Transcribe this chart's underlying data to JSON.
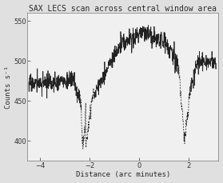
{
  "title": "SAX LECS scan across central window area",
  "xlabel": "Distance (arc minutes)",
  "ylabel": "Counts s⁻¹",
  "xlim": [
    -4.5,
    3.2
  ],
  "ylim": [
    375,
    560
  ],
  "xticks": [
    -4,
    -2,
    0,
    2
  ],
  "yticks": [
    400,
    450,
    500,
    550
  ],
  "plot_bg": "#f0f0f0",
  "fig_bg": "#e0e0e0",
  "line_color": "#222222",
  "title_fontsize": 7.0,
  "label_fontsize": 6.5,
  "tick_fontsize": 6.0
}
